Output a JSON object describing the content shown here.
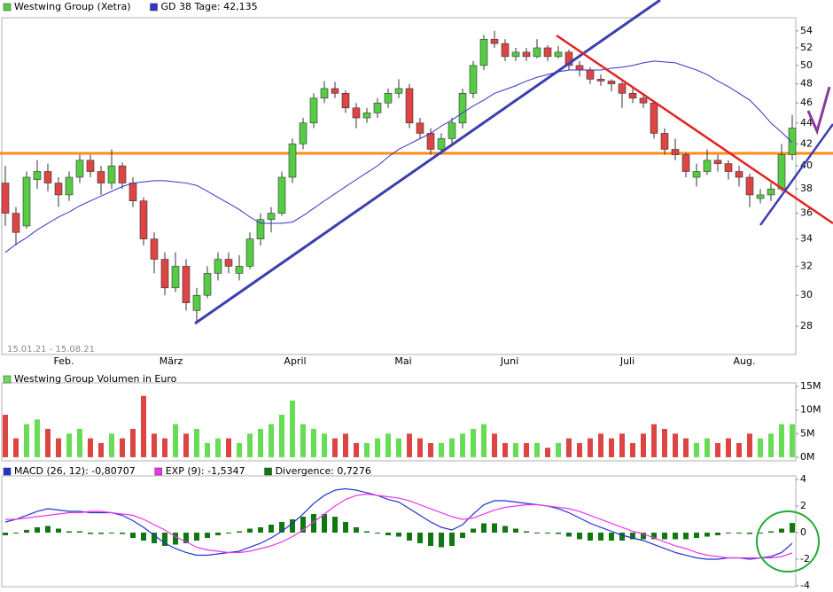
{
  "chart_data": [
    {
      "type": "candlestick",
      "log_scale": true,
      "date_range": "15.01.21 - 15.08.21",
      "x_labels": [
        "Feb.",
        "März",
        "April",
        "Mai",
        "Juni",
        "Juli",
        "Aug."
      ],
      "ylim": [
        26.3,
        55.6
      ],
      "yticks": [
        28,
        30,
        32,
        34,
        36,
        38,
        40,
        42,
        44,
        46,
        48,
        50,
        52,
        54
      ],
      "series": [
        {
          "name": "Westwing Group (Xetra)",
          "color": "#55cc44",
          "down_color": "#dd4444",
          "ohlc": [
            [
              38.5,
              40,
              35,
              36
            ],
            [
              36,
              36.5,
              33.5,
              34.5
            ],
            [
              35,
              39.5,
              34.8,
              39
            ],
            [
              38.8,
              40.5,
              38,
              39.5
            ],
            [
              39.5,
              40.2,
              37.8,
              38.5
            ],
            [
              38.5,
              39,
              36.5,
              37.5
            ],
            [
              37.5,
              39.5,
              37,
              39
            ],
            [
              39,
              41,
              38.5,
              40.5
            ],
            [
              40.5,
              41,
              39,
              39.5
            ],
            [
              39.5,
              40,
              37.5,
              38.5
            ],
            [
              38.5,
              41.5,
              38,
              40
            ],
            [
              40,
              40.3,
              38,
              38.5
            ],
            [
              38.5,
              39,
              36.5,
              37
            ],
            [
              37,
              37.3,
              33.5,
              34
            ],
            [
              34,
              34.5,
              31.5,
              32.5
            ],
            [
              32.5,
              33,
              30,
              30.5
            ],
            [
              30.5,
              33,
              30.2,
              32
            ],
            [
              32,
              32.5,
              29,
              29.5
            ],
            [
              29,
              30.5,
              28.3,
              30
            ],
            [
              30,
              32,
              29.8,
              31.5
            ],
            [
              31.5,
              33,
              31,
              32.5
            ],
            [
              32.5,
              33,
              31.5,
              32
            ],
            [
              31.5,
              32.8,
              31,
              32
            ],
            [
              32,
              34.5,
              31.8,
              34
            ],
            [
              34,
              36,
              33.5,
              35.5
            ],
            [
              35.5,
              36.5,
              34.5,
              36
            ],
            [
              36,
              39.5,
              35.8,
              39
            ],
            [
              39,
              42.5,
              38.5,
              42
            ],
            [
              42,
              44.5,
              41.5,
              44
            ],
            [
              44,
              47,
              43.5,
              46.5
            ],
            [
              46.5,
              48.3,
              46,
              47.5
            ],
            [
              47.5,
              48.2,
              46.5,
              47
            ],
            [
              47,
              47.3,
              45,
              45.5
            ],
            [
              45.5,
              46,
              43.5,
              44.5
            ],
            [
              44.5,
              45.5,
              44,
              45
            ],
            [
              45,
              46.5,
              44.5,
              46
            ],
            [
              46,
              47.5,
              45.5,
              47
            ],
            [
              47,
              48.5,
              46.5,
              47.5
            ],
            [
              47.5,
              48,
              43.5,
              44
            ],
            [
              44,
              44.5,
              42.5,
              43
            ],
            [
              43,
              43.5,
              41,
              41.5
            ],
            [
              41.5,
              43,
              41,
              42.5
            ],
            [
              42.5,
              44.5,
              42,
              44
            ],
            [
              44,
              47.5,
              43.5,
              47
            ],
            [
              47,
              50.5,
              46.5,
              50
            ],
            [
              50,
              53.5,
              49.5,
              53
            ],
            [
              53,
              54,
              52,
              52.5
            ],
            [
              52.5,
              53,
              50.5,
              51
            ],
            [
              51,
              52,
              50.5,
              51.5
            ],
            [
              51.5,
              52,
              50.5,
              51
            ],
            [
              51,
              53,
              50.8,
              52
            ],
            [
              52,
              52.3,
              50.5,
              51
            ],
            [
              51,
              52.2,
              50.8,
              51.5
            ],
            [
              51.5,
              51.8,
              49.5,
              50
            ],
            [
              50,
              50.5,
              48.8,
              49.5
            ],
            [
              49.5,
              49.8,
              48,
              48.5
            ],
            [
              48.5,
              49,
              47.8,
              48.3
            ],
            [
              48.3,
              48.5,
              47.2,
              48
            ],
            [
              48,
              48.2,
              45.5,
              47
            ],
            [
              47,
              47.5,
              46,
              46.5
            ],
            [
              46.5,
              47,
              45.5,
              46
            ],
            [
              46,
              46.2,
              42.5,
              43
            ],
            [
              43,
              43.5,
              41,
              41.5
            ],
            [
              41.5,
              42.5,
              40.5,
              41
            ],
            [
              41,
              41.2,
              39,
              39.5
            ],
            [
              39,
              40.2,
              38.2,
              39.5
            ],
            [
              39.5,
              41.5,
              39.2,
              40.5
            ],
            [
              40.5,
              41,
              39.5,
              40.2
            ],
            [
              40.2,
              40.5,
              38.8,
              39.5
            ],
            [
              39.5,
              40,
              38.2,
              39
            ],
            [
              39,
              39.3,
              36.5,
              37.5
            ],
            [
              37.2,
              38,
              36.8,
              37.5
            ],
            [
              37.5,
              38.5,
              37,
              38
            ],
            [
              38,
              42,
              37.8,
              41
            ],
            [
              41,
              44.8,
              40.5,
              43.5
            ]
          ]
        },
        {
          "name": "GD 38 Tage: 42,135",
          "color": "#3333cc",
          "values": [
            33,
            33.6,
            34.1,
            34.7,
            35.2,
            35.7,
            36.1,
            36.6,
            37,
            37.4,
            37.8,
            38.2,
            38.5,
            38.6,
            38.7,
            38.7,
            38.6,
            38.5,
            38.3,
            37.8,
            37.3,
            36.8,
            36.3,
            35.7,
            35.2,
            35.2,
            35.2,
            35.3,
            35.8,
            36.4,
            37,
            37.6,
            38.2,
            38.8,
            39.4,
            40,
            40.8,
            41.5,
            42,
            42.5,
            43,
            43.7,
            44.3,
            45,
            45.7,
            46.3,
            47,
            47.4,
            47.8,
            48.3,
            48.7,
            49,
            49.3,
            49.5,
            49.5,
            49.5,
            49.5,
            49.7,
            49.8,
            50,
            50.3,
            50.5,
            50.4,
            50.3,
            49.9,
            49.5,
            49,
            48.3,
            47.7,
            47,
            46.3,
            45.2,
            44,
            43.1,
            42.135
          ]
        }
      ]
    },
    {
      "type": "bar",
      "ylim": [
        -0.76,
        15.75
      ],
      "yticks": [
        {
          "value": 15,
          "label": "15M"
        },
        {
          "value": 10,
          "label": "10M"
        },
        {
          "value": 5,
          "label": "5M"
        },
        {
          "value": 0,
          "label": "0M"
        }
      ],
      "series": [
        {
          "name": "Westwing Group Volumen in Euro",
          "color": "#66dd55",
          "values": [
            9,
            4,
            7,
            8,
            6,
            4,
            5,
            6,
            4,
            3,
            5,
            4,
            6,
            13,
            5,
            4,
            7,
            5,
            6,
            3,
            4,
            4,
            3,
            5,
            6,
            7,
            9,
            12,
            7,
            6,
            5,
            4,
            5,
            3,
            3,
            4,
            5,
            4,
            5,
            4,
            3,
            3,
            4,
            5,
            6,
            7,
            5,
            3,
            3,
            3,
            3,
            2,
            3,
            4,
            3,
            4,
            5,
            4,
            5,
            3,
            5,
            7,
            6,
            5,
            4,
            3,
            4,
            3,
            4,
            3,
            5,
            4,
            5,
            7,
            7
          ]
        }
      ]
    },
    {
      "type": "macd",
      "ylim": [
        -4.07,
        4.27
      ],
      "yticks": [
        4,
        2,
        0,
        -2,
        -4
      ],
      "series": [
        {
          "name": "MACD (26, 12): -0,80707",
          "color": "#2233cc",
          "values": [
            0.8,
            1.0,
            1.3,
            1.6,
            1.8,
            1.7,
            1.6,
            1.6,
            1.5,
            1.5,
            1.5,
            1.3,
            0.9,
            0.4,
            -0.2,
            -0.8,
            -1.2,
            -1.5,
            -1.7,
            -1.7,
            -1.6,
            -1.5,
            -1.4,
            -1.1,
            -0.8,
            -0.4,
            0.1,
            0.7,
            1.4,
            2.2,
            2.8,
            3.2,
            3.3,
            3.2,
            3.0,
            2.8,
            2.5,
            2.3,
            1.8,
            1.3,
            0.8,
            0.4,
            0.2,
            0.6,
            1.4,
            2.1,
            2.4,
            2.4,
            2.3,
            2.2,
            2.1,
            2.0,
            1.8,
            1.5,
            1.1,
            0.7,
            0.4,
            0.1,
            -0.2,
            -0.4,
            -0.6,
            -0.9,
            -1.2,
            -1.5,
            -1.7,
            -1.9,
            -2.0,
            -2.0,
            -1.9,
            -1.9,
            -2.0,
            -1.9,
            -1.8,
            -1.5,
            -0.80707
          ]
        },
        {
          "name": "EXP (9): -1,5347",
          "color": "#ee33ee",
          "values": [
            1.0,
            1.0,
            1.1,
            1.2,
            1.3,
            1.4,
            1.5,
            1.5,
            1.6,
            1.6,
            1.5,
            1.4,
            1.3,
            1.0,
            0.6,
            0.2,
            -0.3,
            -0.7,
            -1.1,
            -1.3,
            -1.4,
            -1.5,
            -1.5,
            -1.4,
            -1.2,
            -1.0,
            -0.7,
            -0.3,
            0.2,
            0.8,
            1.4,
            2.0,
            2.5,
            2.8,
            2.9,
            2.8,
            2.7,
            2.6,
            2.4,
            2.1,
            1.8,
            1.5,
            1.2,
            1.0,
            1.1,
            1.4,
            1.7,
            1.9,
            2.0,
            2.1,
            2.1,
            2.0,
            1.9,
            1.8,
            1.6,
            1.3,
            1.0,
            0.7,
            0.4,
            0.1,
            -0.1,
            -0.4,
            -0.7,
            -1.0,
            -1.2,
            -1.5,
            -1.7,
            -1.8,
            -1.9,
            -1.9,
            -1.9,
            -1.9,
            -1.9,
            -1.8,
            -1.5347
          ]
        },
        {
          "name": "Divergence: 0,7276",
          "color": "#117711",
          "values": [
            -0.2,
            0,
            0.2,
            0.4,
            0.5,
            0.3,
            0.1,
            0.1,
            -0.1,
            -0.1,
            0,
            -0.1,
            -0.4,
            -0.6,
            -0.8,
            -1.0,
            -0.9,
            -0.8,
            -0.6,
            -0.4,
            -0.2,
            0,
            0.1,
            0.3,
            0.4,
            0.6,
            0.8,
            1.0,
            1.2,
            1.4,
            1.4,
            1.2,
            0.8,
            0.4,
            0.1,
            0,
            -0.2,
            -0.3,
            -0.6,
            -0.8,
            -1.0,
            -1.1,
            -1.0,
            -0.4,
            0.3,
            0.7,
            0.7,
            0.5,
            0.3,
            0.1,
            0,
            0,
            -0.1,
            -0.3,
            -0.5,
            -0.6,
            -0.6,
            -0.6,
            -0.6,
            -0.5,
            -0.5,
            -0.5,
            -0.5,
            -0.5,
            -0.5,
            -0.4,
            -0.3,
            -0.2,
            0,
            0,
            -0.1,
            0,
            0.1,
            0.3,
            0.7276
          ]
        }
      ]
    }
  ]
}
